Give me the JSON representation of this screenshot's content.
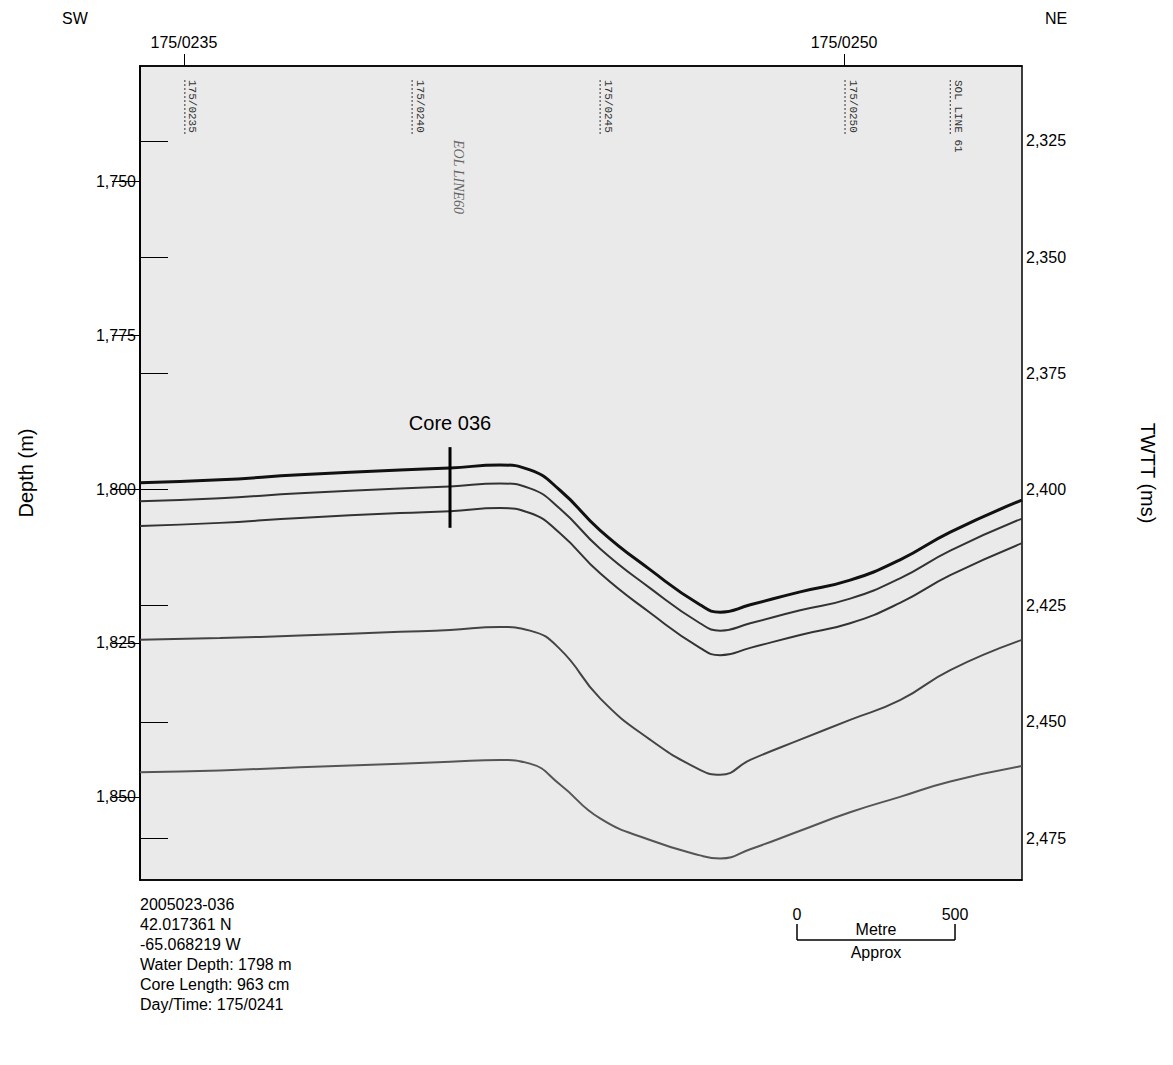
{
  "chart_data": {
    "type": "line",
    "y_label": "Depth (m)",
    "y2_label": "TWTT (ms)",
    "corner_labels": {
      "left": "SW",
      "right": "NE"
    },
    "x": [
      0,
      253,
      506,
      823,
      981,
      1139,
      1234,
      1329,
      1456,
      1614,
      1772,
      1836,
      1931,
      2089,
      2247,
      2405,
      2564,
      2791
    ],
    "series": [
      {
        "color": "#111111",
        "values": [
          1799.0,
          1798.5,
          1797.7,
          1796.9,
          1796.6,
          1796.1,
          1796.9,
          1800.2,
          1806.7,
          1813.1,
          1818.8,
          1820.0,
          1818.8,
          1816.7,
          1814.8,
          1811.5,
          1807.0,
          1801.8
        ]
      },
      {
        "color": "#333333",
        "values": [
          1802.0,
          1801.5,
          1800.7,
          1799.9,
          1799.6,
          1799.1,
          1799.9,
          1803.2,
          1809.7,
          1816.1,
          1821.8,
          1823.0,
          1821.8,
          1819.7,
          1817.8,
          1814.5,
          1810.0,
          1804.8
        ]
      },
      {
        "color": "#333333",
        "values": [
          1806.0,
          1805.5,
          1804.7,
          1803.9,
          1803.6,
          1803.1,
          1803.9,
          1807.2,
          1813.7,
          1820.1,
          1825.8,
          1827.0,
          1825.8,
          1823.7,
          1821.8,
          1818.5,
          1814.0,
          1808.8
        ]
      },
      {
        "color": "#444444",
        "values": [
          1824.5,
          1824.2,
          1823.8,
          1823.2,
          1822.9,
          1822.4,
          1823.0,
          1826.0,
          1834.0,
          1840.7,
          1845.6,
          1846.4,
          1844.0,
          1840.7,
          1837.5,
          1834.3,
          1829.4,
          1824.5
        ]
      },
      {
        "color": "#555555",
        "values": [
          1846.0,
          1845.7,
          1845.2,
          1844.6,
          1844.3,
          1844.0,
          1844.6,
          1848.0,
          1853.5,
          1857.0,
          1859.5,
          1860.0,
          1858.5,
          1855.5,
          1852.5,
          1850.0,
          1847.5,
          1845.0
        ]
      }
    ],
    "xlim": [
      0,
      2791
    ],
    "ylim": [
      1731.3,
      1863.5
    ],
    "yticks": [
      1750,
      1775,
      1800,
      1825,
      1850
    ],
    "y2lim": [
      2308.9,
      2484.0
    ],
    "y2ticks": [
      2325,
      2350,
      2375,
      2400,
      2425,
      2450,
      2475
    ],
    "top_ticks": [
      {
        "value": 139,
        "label": "175/0235"
      },
      {
        "value": 2228,
        "label": "175/0250"
      }
    ],
    "event_marks": [
      {
        "x": 142,
        "label": "175/0235"
      },
      {
        "x": 861,
        "label": "175/0240"
      },
      {
        "x": 1456,
        "label": "175/0245"
      },
      {
        "x": 2231,
        "label": "175/0250"
      },
      {
        "x": 2564,
        "label": "SOL LINE 61"
      }
    ],
    "handwritten": {
      "x": 997,
      "label": "EOL LINE60"
    },
    "core": {
      "label": "Core 036",
      "x": 981,
      "top": 1793.2,
      "bottom": 1806.3
    },
    "scale_bar": {
      "ticks": [
        0,
        500
      ],
      "label": "Metre",
      "note": "Approx"
    },
    "info": [
      "2005023-036",
      "42.017361 N",
      "-65.068219 W",
      "Water Depth: 1798 m",
      "Core Length: 963 cm",
      "Day/Time: 175/0241"
    ],
    "tick_labels": "y",
    "grid": false
  }
}
